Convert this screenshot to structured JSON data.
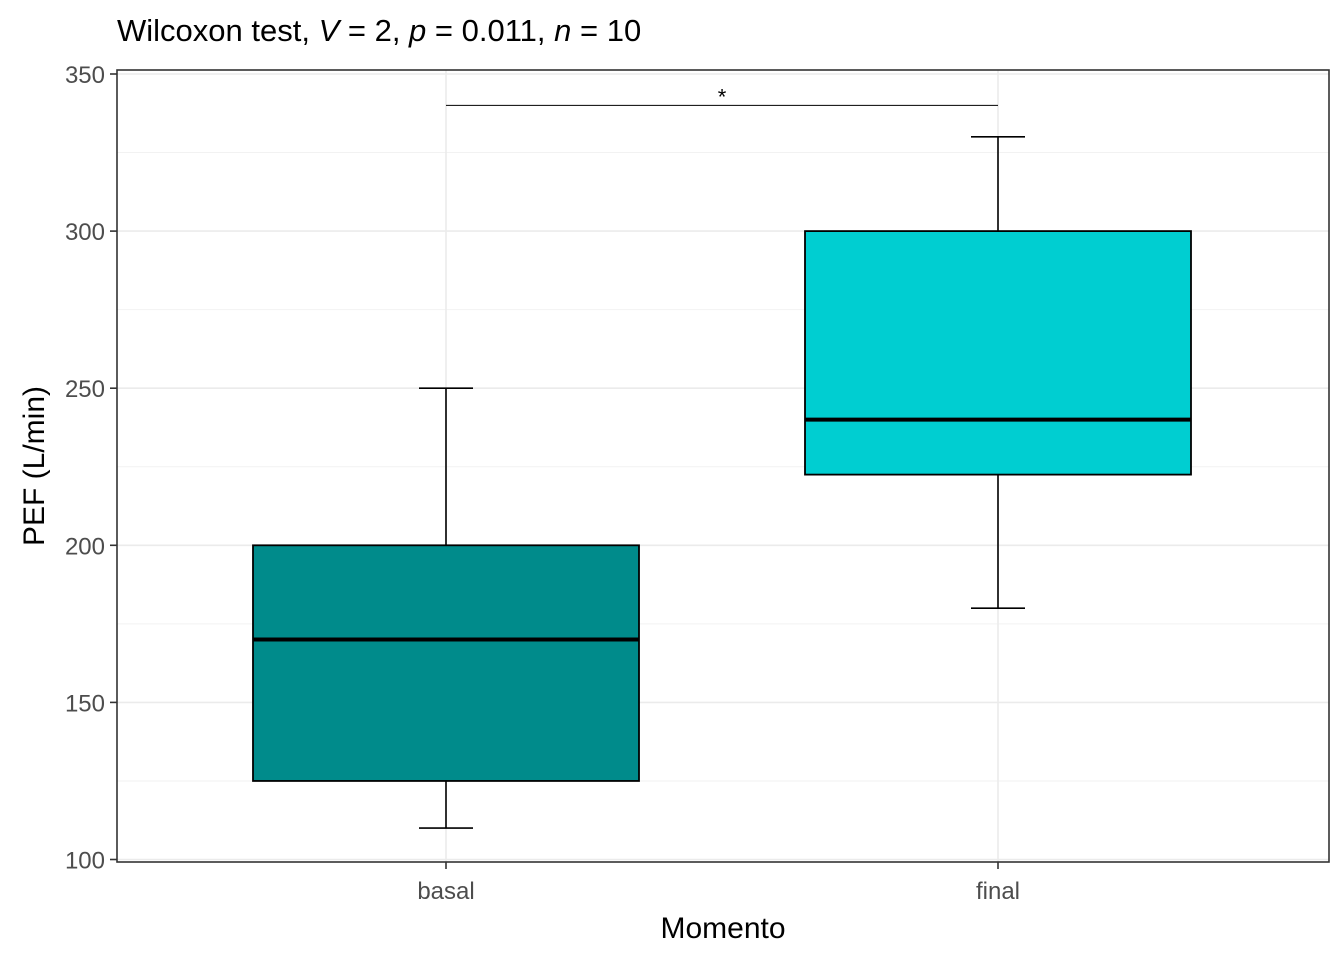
{
  "chart_data": {
    "type": "boxplot",
    "title_parts": [
      {
        "text": "Wilcoxon test, ",
        "italic": false
      },
      {
        "text": "V",
        "italic": true
      },
      {
        "text": " = 2, ",
        "italic": false
      },
      {
        "text": "p",
        "italic": true
      },
      {
        "text": " = 0.011, ",
        "italic": false
      },
      {
        "text": "n",
        "italic": true
      },
      {
        "text": " = 10",
        "italic": false
      }
    ],
    "xlabel": "Momento",
    "ylabel": "PEF (L/min)",
    "ylim": [
      100,
      350
    ],
    "yticks": [
      "100",
      "150",
      "200",
      "250",
      "300",
      "350"
    ],
    "categories": [
      "basal",
      "final"
    ],
    "boxes": [
      {
        "category": "basal",
        "whisker_low": 110,
        "q1": 125,
        "median": 170,
        "q3": 200,
        "whisker_high": 250,
        "color": "#008B8B"
      },
      {
        "category": "final",
        "whisker_low": 180,
        "q1": 222.5,
        "median": 240,
        "q3": 300,
        "whisker_high": 330,
        "color": "#00CED1"
      }
    ],
    "significance": {
      "from": "basal",
      "to": "final",
      "y": 340,
      "label": "*"
    },
    "grid": true,
    "legend": "none"
  }
}
